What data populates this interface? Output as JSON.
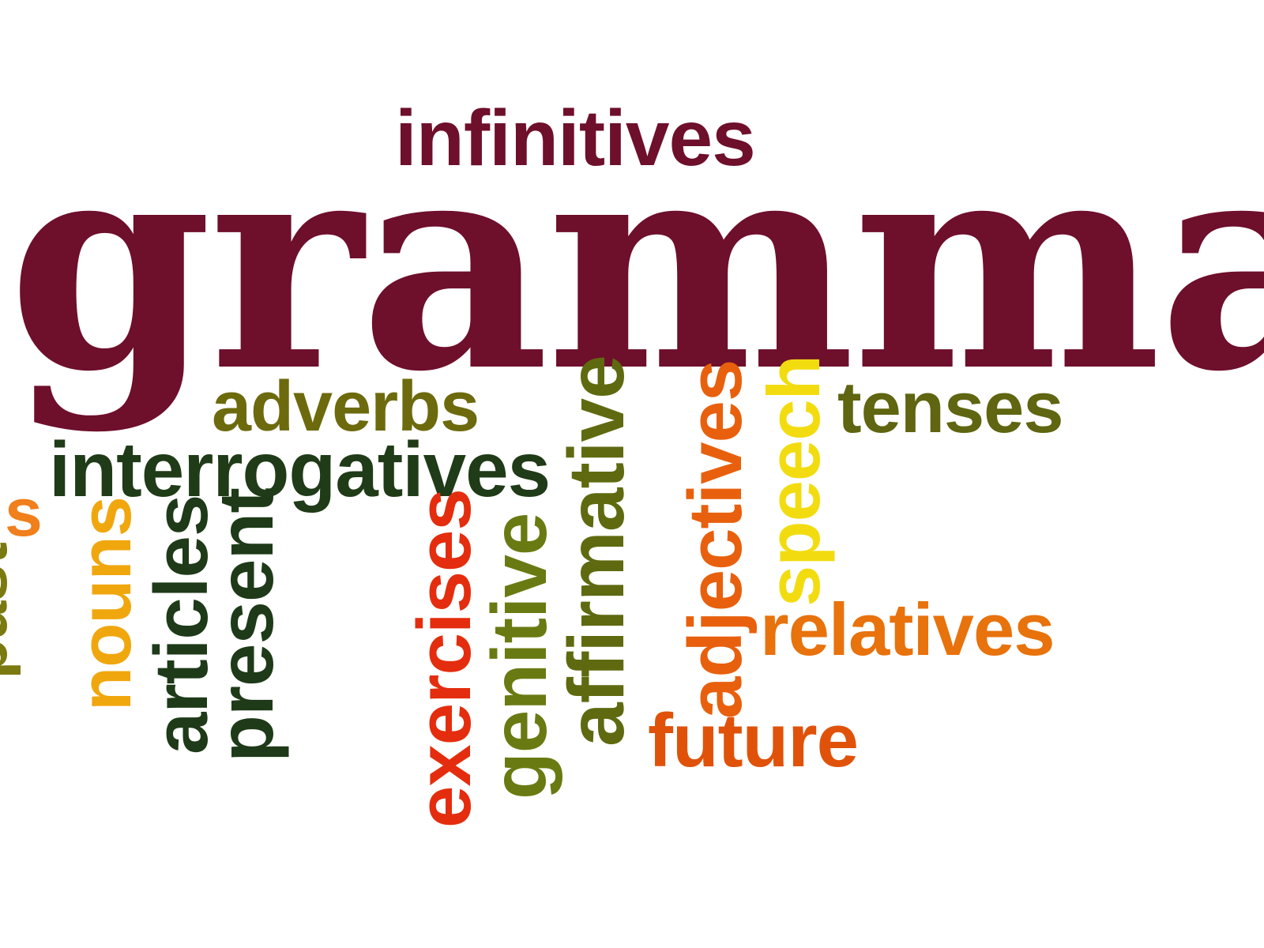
{
  "word_cloud": {
    "words": [
      {
        "text": "grammar",
        "color": "#6e0f2b",
        "orientation": "horizontal"
      },
      {
        "text": "infinitives",
        "color": "#6e0f2b",
        "orientation": "horizontal"
      },
      {
        "text": "adverbs",
        "color": "#6d6a0e",
        "orientation": "horizontal"
      },
      {
        "text": "interrogatives",
        "color": "#1f3b17",
        "orientation": "horizontal"
      },
      {
        "text": "tenses",
        "color": "#5f6510",
        "orientation": "horizontal"
      },
      {
        "text": "relatives",
        "color": "#e8720c",
        "orientation": "horizontal"
      },
      {
        "text": "future",
        "color": "#e0520a",
        "orientation": "horizontal"
      },
      {
        "text": "past",
        "color": "#7a7a10",
        "orientation": "vertical"
      },
      {
        "text": "s",
        "color": "#f07f1c",
        "orientation": "horizontal"
      },
      {
        "text": "nouns",
        "color": "#f0a70e",
        "orientation": "vertical"
      },
      {
        "text": "articles",
        "color": "#1e3a18",
        "orientation": "vertical"
      },
      {
        "text": "present",
        "color": "#1e3a18",
        "orientation": "vertical"
      },
      {
        "text": "exercises",
        "color": "#e42d0e",
        "orientation": "vertical"
      },
      {
        "text": "genitive",
        "color": "#6a7a12",
        "orientation": "vertical"
      },
      {
        "text": "affirmative",
        "color": "#5f6a10",
        "orientation": "vertical"
      },
      {
        "text": "adjectives",
        "color": "#e8600d",
        "orientation": "vertical"
      },
      {
        "text": "speech",
        "color": "#f2dc10",
        "orientation": "vertical"
      }
    ]
  }
}
